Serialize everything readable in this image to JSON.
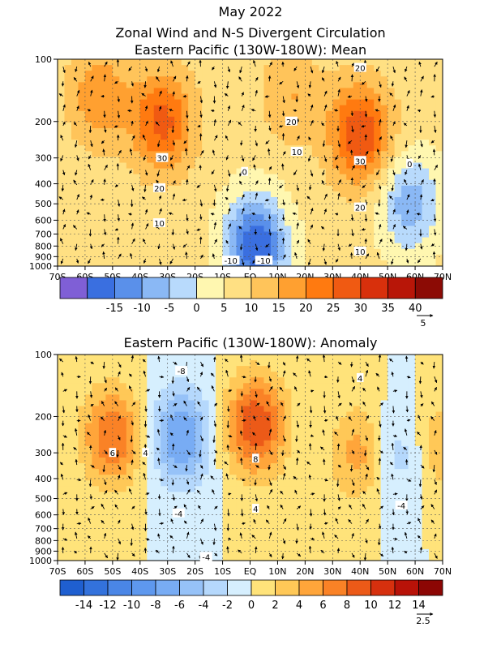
{
  "chart_data": [
    {
      "type": "heatmap",
      "title_lines": [
        "May 2022",
        "Zonal Wind and N-S Divergent Circulation",
        "Eastern Pacific (130W-180W): Mean"
      ],
      "x_ticks": [
        "70S",
        "60S",
        "50S",
        "40S",
        "30S",
        "20S",
        "10S",
        "EQ",
        "10N",
        "20N",
        "30N",
        "40N",
        "50N",
        "60N",
        "70N"
      ],
      "y_ticks": [
        "100",
        "200",
        "300",
        "400",
        "500",
        "600",
        "700",
        "800",
        "900",
        "1000"
      ],
      "colorbar_labels": [
        "-15",
        "-10",
        "-5",
        "0",
        "5",
        "10",
        "15",
        "20",
        "25",
        "30",
        "35",
        "40"
      ],
      "colorbar_colors": [
        "#7f5fd6",
        "#3a6fe0",
        "#5a90ea",
        "#8ab8f5",
        "#b8dafc",
        "#fff7b0",
        "#ffe083",
        "#ffc45a",
        "#ffa030",
        "#ff7a10",
        "#f05a12",
        "#d8300c",
        "#b81608",
        "#8c0b05"
      ],
      "contour_labels": [
        "20",
        "20",
        "10",
        "0",
        "30",
        "20",
        "10",
        "30",
        "20",
        "10",
        "0",
        "-10",
        "-10"
      ],
      "vector_scale": "5",
      "jets": [
        {
          "lat": -32,
          "p": 200,
          "value": 32
        },
        {
          "lat": -55,
          "p": 150,
          "value": 24
        },
        {
          "lat": 40,
          "p": 230,
          "value": 35
        },
        {
          "lat": 15,
          "p": 150,
          "value": 20
        },
        {
          "lat": 2,
          "p": 800,
          "value": -15
        },
        {
          "lat": 58,
          "p": 500,
          "value": -3
        }
      ]
    },
    {
      "type": "heatmap",
      "title_lines": [
        "Eastern Pacific (130W-180W): Anomaly"
      ],
      "x_ticks": [
        "70S",
        "60S",
        "50S",
        "40S",
        "30S",
        "20S",
        "10S",
        "EQ",
        "10N",
        "20N",
        "30N",
        "40N",
        "50N",
        "60N",
        "70N"
      ],
      "y_ticks": [
        "100",
        "200",
        "300",
        "400",
        "500",
        "600",
        "700",
        "800",
        "900",
        "1000"
      ],
      "colorbar_labels": [
        "-14",
        "-12",
        "-10",
        "-8",
        "-6",
        "-4",
        "-2",
        "0",
        "2",
        "4",
        "6",
        "8",
        "10",
        "12",
        "14"
      ],
      "colorbar_colors": [
        "#1f5fd0",
        "#3372dc",
        "#4a86e6",
        "#5e98ee",
        "#78acf4",
        "#96c2f8",
        "#b5d8fc",
        "#d6effe",
        "#ffe37a",
        "#ffc857",
        "#ffa53a",
        "#fa8226",
        "#ec5a18",
        "#d6300e",
        "#b81208",
        "#8c0604"
      ],
      "contour_labels": [
        "-8",
        "6",
        "4",
        "8",
        "-4",
        "4",
        "4",
        "-4",
        "-4"
      ],
      "vector_scale": "2.5",
      "jets": [
        {
          "lat": -50,
          "p": 250,
          "value": 8
        },
        {
          "lat": -25,
          "p": 250,
          "value": -8
        },
        {
          "lat": 2,
          "p": 220,
          "value": 10
        },
        {
          "lat": 40,
          "p": 300,
          "value": 5
        },
        {
          "lat": 55,
          "p": 300,
          "value": -4
        },
        {
          "lat": 68,
          "p": 280,
          "value": 4
        }
      ]
    }
  ]
}
